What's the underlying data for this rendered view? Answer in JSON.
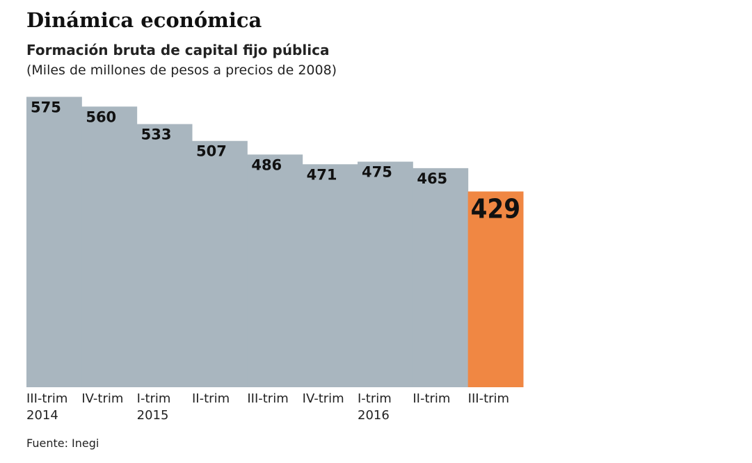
{
  "chart_data": {
    "type": "bar",
    "title": "Dinámica económica",
    "subtitle": "Formación bruta de capital fijo pública",
    "unit_note": "(Miles de millones de pesos a precios de 2008)",
    "source": "Fuente: Inegi",
    "categories": [
      "III-trim\n2014",
      "IV-trim",
      "I-trim\n2015",
      "II-trim",
      "III-trim",
      "IV-trim",
      "I-trim\n2016",
      "II-trim",
      "III-trim"
    ],
    "values": [
      575,
      560,
      533,
      507,
      486,
      471,
      475,
      465,
      429
    ],
    "colors": [
      "#a9b6bf",
      "#a9b6bf",
      "#a9b6bf",
      "#a9b6bf",
      "#a9b6bf",
      "#a9b6bf",
      "#a9b6bf",
      "#a9b6bf",
      "#f08743"
    ],
    "ylim": [
      127,
      600
    ]
  }
}
